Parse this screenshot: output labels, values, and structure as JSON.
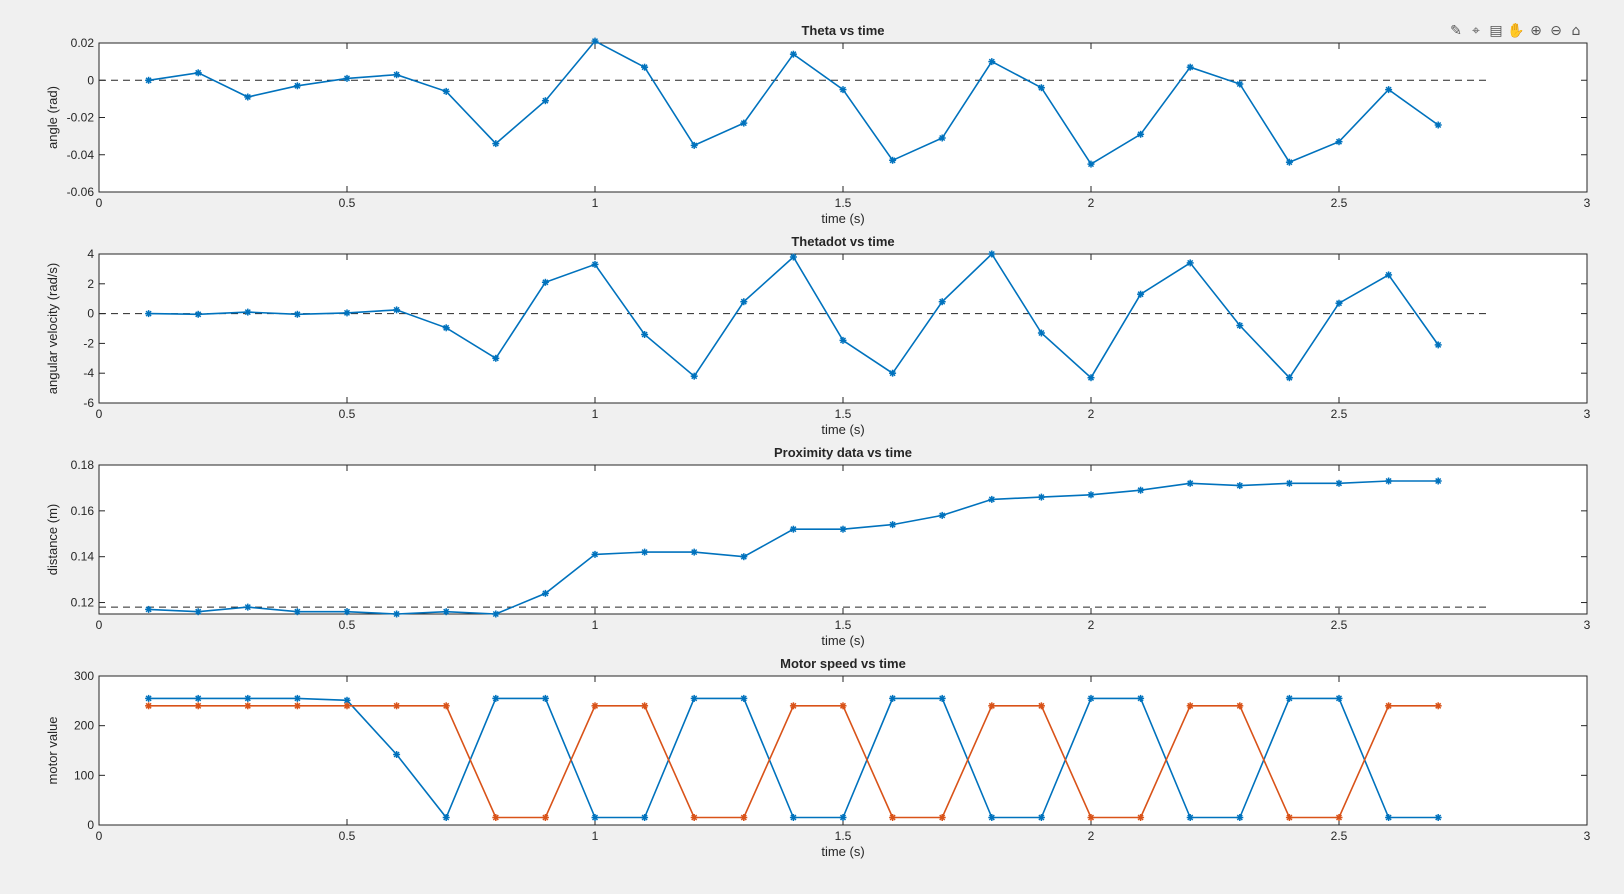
{
  "toolbar": {
    "icons": [
      "brush-icon",
      "data-cursor-icon",
      "legend-icon",
      "pan-icon",
      "zoom-in-icon",
      "zoom-out-icon",
      "home-icon"
    ]
  },
  "colors": {
    "series1": "#0072bd",
    "series2": "#d95319",
    "axis": "#262626",
    "refline": "#262626",
    "background": "#f0f0f0"
  },
  "chart_data": [
    {
      "type": "line",
      "title": "Theta vs time",
      "xlabel": "time (s)",
      "ylabel": "angle (rad)",
      "xlim": [
        0,
        3
      ],
      "ylim": [
        -0.06,
        0.02
      ],
      "xticks": [
        0,
        0.5,
        1,
        1.5,
        2,
        2.5,
        3
      ],
      "xtick_labels": [
        "0",
        "0.5",
        "1",
        "1.5",
        "2",
        "2.5",
        "3"
      ],
      "yticks": [
        -0.06,
        -0.04,
        -0.02,
        0,
        0.02
      ],
      "ytick_labels": [
        "-0.06",
        "-0.04",
        "-0.02",
        "0",
        "0.02"
      ],
      "reference_line": {
        "y": 0,
        "x_range": [
          0,
          2.8
        ],
        "style": "dashed"
      },
      "series": [
        {
          "x": [
            0.1,
            0.2,
            0.3,
            0.4,
            0.5,
            0.6,
            0.7,
            0.8,
            0.9,
            1.0,
            1.1,
            1.2,
            1.3,
            1.4,
            1.5,
            1.6,
            1.7,
            1.8,
            1.9,
            2.0,
            2.1,
            2.2,
            2.3,
            2.4,
            2.5,
            2.6,
            2.7
          ],
          "values": [
            0.0,
            0.004,
            -0.009,
            -0.003,
            0.001,
            0.003,
            -0.006,
            -0.034,
            -0.011,
            0.021,
            0.007,
            -0.035,
            -0.023,
            0.014,
            -0.005,
            -0.043,
            -0.031,
            0.01,
            -0.004,
            -0.045,
            -0.029,
            0.007,
            -0.002,
            -0.044,
            -0.033,
            -0.005,
            -0.024
          ]
        }
      ]
    },
    {
      "type": "line",
      "title": "Thetadot vs time",
      "xlabel": "time (s)",
      "ylabel": "angular velocity (rad/s)",
      "xlim": [
        0,
        3
      ],
      "ylim": [
        -6,
        4
      ],
      "xticks": [
        0,
        0.5,
        1,
        1.5,
        2,
        2.5,
        3
      ],
      "xtick_labels": [
        "0",
        "0.5",
        "1",
        "1.5",
        "2",
        "2.5",
        "3"
      ],
      "yticks": [
        -6,
        -4,
        -2,
        0,
        2,
        4
      ],
      "ytick_labels": [
        "-6",
        "-4",
        "-2",
        "0",
        "2",
        "4"
      ],
      "reference_line": {
        "y": 0,
        "x_range": [
          0,
          2.8
        ],
        "style": "dashed"
      },
      "series": [
        {
          "x": [
            0.1,
            0.2,
            0.3,
            0.4,
            0.5,
            0.6,
            0.7,
            0.8,
            0.9,
            1.0,
            1.1,
            1.2,
            1.3,
            1.4,
            1.5,
            1.6,
            1.7,
            1.8,
            1.9,
            2.0,
            2.1,
            2.2,
            2.3,
            2.4,
            2.5,
            2.6,
            2.7
          ],
          "values": [
            0.0,
            -0.05,
            0.1,
            -0.05,
            0.05,
            0.25,
            -0.95,
            -3.0,
            2.1,
            3.3,
            -1.4,
            -4.2,
            0.8,
            3.8,
            -1.8,
            -4.0,
            0.8,
            4.0,
            -1.3,
            -4.3,
            1.3,
            3.4,
            -0.8,
            -4.3,
            0.7,
            2.6,
            -2.1
          ]
        }
      ]
    },
    {
      "type": "line",
      "title": "Proximity data vs time",
      "xlabel": "time (s)",
      "ylabel": "distance (m)",
      "xlim": [
        0,
        3
      ],
      "ylim": [
        0.115,
        0.18
      ],
      "xticks": [
        0,
        0.5,
        1,
        1.5,
        2,
        2.5,
        3
      ],
      "xtick_labels": [
        "0",
        "0.5",
        "1",
        "1.5",
        "2",
        "2.5",
        "3"
      ],
      "yticks": [
        0.12,
        0.14,
        0.16,
        0.18
      ],
      "ytick_labels": [
        "0.12",
        "0.14",
        "0.16",
        "0.18"
      ],
      "reference_line": {
        "y": 0.118,
        "x_range": [
          0,
          2.8
        ],
        "style": "dashed"
      },
      "series": [
        {
          "x": [
            0.1,
            0.2,
            0.3,
            0.4,
            0.5,
            0.6,
            0.7,
            0.8,
            0.9,
            1.0,
            1.1,
            1.2,
            1.3,
            1.4,
            1.5,
            1.6,
            1.7,
            1.8,
            1.9,
            2.0,
            2.1,
            2.2,
            2.3,
            2.4,
            2.5,
            2.6,
            2.7
          ],
          "values": [
            0.117,
            0.116,
            0.118,
            0.116,
            0.116,
            0.115,
            0.116,
            0.115,
            0.124,
            0.141,
            0.142,
            0.142,
            0.14,
            0.152,
            0.152,
            0.154,
            0.158,
            0.165,
            0.166,
            0.167,
            0.169,
            0.172,
            0.171,
            0.172,
            0.172,
            0.173,
            0.173
          ]
        }
      ]
    },
    {
      "type": "line",
      "title": "Motor speed vs time",
      "xlabel": "time (s)",
      "ylabel": "motor value",
      "xlim": [
        0,
        3
      ],
      "ylim": [
        0,
        300
      ],
      "xticks": [
        0,
        0.5,
        1,
        1.5,
        2,
        2.5,
        3
      ],
      "xtick_labels": [
        "0",
        "0.5",
        "1",
        "1.5",
        "2",
        "2.5",
        "3"
      ],
      "yticks": [
        0,
        100,
        200,
        300
      ],
      "ytick_labels": [
        "0",
        "100",
        "200",
        "300"
      ],
      "series": [
        {
          "color": "#0072bd",
          "x": [
            0.1,
            0.2,
            0.3,
            0.4,
            0.5,
            0.6,
            0.7,
            0.8,
            0.9,
            1.0,
            1.1,
            1.2,
            1.3,
            1.4,
            1.5,
            1.6,
            1.7,
            1.8,
            1.9,
            2.0,
            2.1,
            2.2,
            2.3,
            2.4,
            2.5,
            2.6,
            2.7
          ],
          "values": [
            255,
            255,
            255,
            255,
            251,
            142,
            15,
            255,
            255,
            15,
            15,
            255,
            255,
            15,
            15,
            255,
            255,
            15,
            15,
            255,
            255,
            15,
            15,
            255,
            255,
            15,
            15
          ]
        },
        {
          "color": "#d95319",
          "x": [
            0.1,
            0.2,
            0.3,
            0.4,
            0.5,
            0.6,
            0.7,
            0.8,
            0.9,
            1.0,
            1.1,
            1.2,
            1.3,
            1.4,
            1.5,
            1.6,
            1.7,
            1.8,
            1.9,
            2.0,
            2.1,
            2.2,
            2.3,
            2.4,
            2.5,
            2.6,
            2.7
          ],
          "values": [
            240,
            240,
            240,
            240,
            240,
            240,
            240,
            15,
            15,
            240,
            240,
            15,
            15,
            240,
            240,
            15,
            15,
            240,
            240,
            15,
            15,
            240,
            240,
            15,
            15,
            240,
            240
          ]
        }
      ]
    }
  ]
}
